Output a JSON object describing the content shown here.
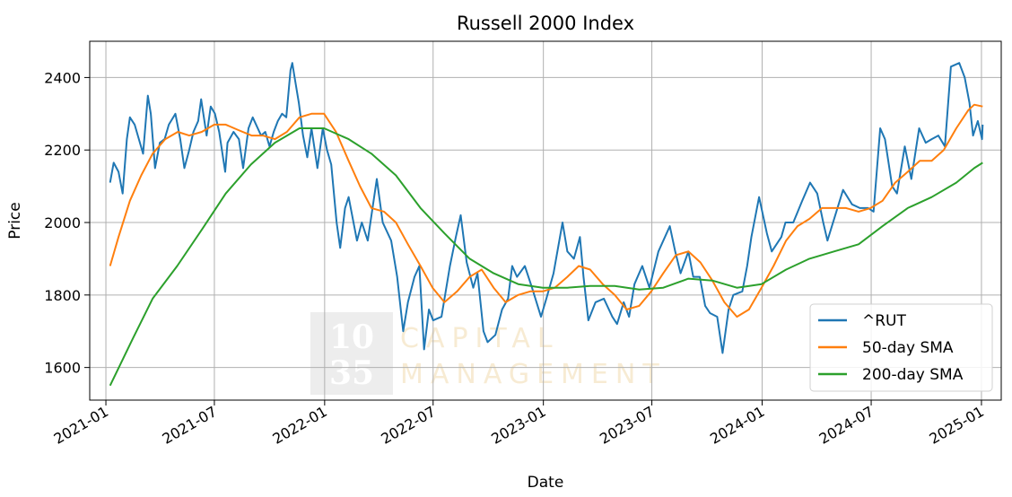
{
  "chart_data": {
    "type": "line",
    "title": "Russell 2000 Index",
    "xlabel": "Date",
    "ylabel": "Price",
    "xlim": [
      "2020-12-05",
      "2025-02-03"
    ],
    "ylim": [
      1510,
      2500
    ],
    "xticks": [
      "2021-01",
      "2021-07",
      "2022-01",
      "2022-07",
      "2023-01",
      "2023-07",
      "2024-01",
      "2024-07",
      "2025-01"
    ],
    "yticks": [
      1600,
      1800,
      2000,
      2200,
      2400
    ],
    "grid": true,
    "legend": "lower-right",
    "watermark": {
      "numerals": [
        "10",
        "35"
      ],
      "words": [
        "CAPITAL",
        "MANAGEMENT"
      ]
    },
    "series": [
      {
        "name": "^RUT",
        "color": "#1f77b4",
        "points": [
          [
            "2021-01-08",
            2110
          ],
          [
            "2021-01-14",
            2165
          ],
          [
            "2021-01-22",
            2140
          ],
          [
            "2021-01-29",
            2080
          ],
          [
            "2021-02-05",
            2230
          ],
          [
            "2021-02-10",
            2290
          ],
          [
            "2021-02-18",
            2270
          ],
          [
            "2021-02-25",
            2230
          ],
          [
            "2021-03-04",
            2190
          ],
          [
            "2021-03-12",
            2350
          ],
          [
            "2021-03-17",
            2300
          ],
          [
            "2021-03-24",
            2150
          ],
          [
            "2021-04-01",
            2220
          ],
          [
            "2021-04-09",
            2230
          ],
          [
            "2021-04-16",
            2270
          ],
          [
            "2021-04-27",
            2300
          ],
          [
            "2021-05-05",
            2230
          ],
          [
            "2021-05-12",
            2150
          ],
          [
            "2021-05-20",
            2200
          ],
          [
            "2021-05-27",
            2250
          ],
          [
            "2021-06-04",
            2280
          ],
          [
            "2021-06-09",
            2340
          ],
          [
            "2021-06-18",
            2240
          ],
          [
            "2021-06-25",
            2320
          ],
          [
            "2021-07-02",
            2300
          ],
          [
            "2021-07-09",
            2250
          ],
          [
            "2021-07-19",
            2140
          ],
          [
            "2021-07-23",
            2220
          ],
          [
            "2021-08-02",
            2250
          ],
          [
            "2021-08-11",
            2230
          ],
          [
            "2021-08-18",
            2150
          ],
          [
            "2021-08-27",
            2260
          ],
          [
            "2021-09-03",
            2290
          ],
          [
            "2021-09-17",
            2240
          ],
          [
            "2021-09-24",
            2250
          ],
          [
            "2021-10-01",
            2210
          ],
          [
            "2021-10-08",
            2250
          ],
          [
            "2021-10-15",
            2280
          ],
          [
            "2021-10-22",
            2300
          ],
          [
            "2021-10-29",
            2290
          ],
          [
            "2021-11-05",
            2420
          ],
          [
            "2021-11-08",
            2440
          ],
          [
            "2021-11-12",
            2400
          ],
          [
            "2021-11-19",
            2330
          ],
          [
            "2021-11-26",
            2240
          ],
          [
            "2021-12-03",
            2180
          ],
          [
            "2021-12-10",
            2260
          ],
          [
            "2021-12-20",
            2150
          ],
          [
            "2021-12-29",
            2260
          ],
          [
            "2022-01-05",
            2200
          ],
          [
            "2022-01-12",
            2160
          ],
          [
            "2022-01-21",
            2000
          ],
          [
            "2022-01-27",
            1930
          ],
          [
            "2022-02-04",
            2040
          ],
          [
            "2022-02-10",
            2070
          ],
          [
            "2022-02-24",
            1950
          ],
          [
            "2022-03-04",
            2000
          ],
          [
            "2022-03-14",
            1950
          ],
          [
            "2022-03-29",
            2120
          ],
          [
            "2022-04-08",
            2000
          ],
          [
            "2022-04-22",
            1950
          ],
          [
            "2022-05-02",
            1850
          ],
          [
            "2022-05-12",
            1700
          ],
          [
            "2022-05-20",
            1780
          ],
          [
            "2022-05-31",
            1850
          ],
          [
            "2022-06-08",
            1880
          ],
          [
            "2022-06-16",
            1650
          ],
          [
            "2022-06-24",
            1760
          ],
          [
            "2022-07-01",
            1730
          ],
          [
            "2022-07-15",
            1740
          ],
          [
            "2022-07-29",
            1880
          ],
          [
            "2022-08-08",
            1960
          ],
          [
            "2022-08-16",
            2020
          ],
          [
            "2022-08-26",
            1890
          ],
          [
            "2022-09-06",
            1820
          ],
          [
            "2022-09-13",
            1860
          ],
          [
            "2022-09-23",
            1700
          ],
          [
            "2022-09-30",
            1670
          ],
          [
            "2022-10-13",
            1690
          ],
          [
            "2022-10-24",
            1760
          ],
          [
            "2022-11-03",
            1790
          ],
          [
            "2022-11-10",
            1880
          ],
          [
            "2022-11-18",
            1850
          ],
          [
            "2022-12-01",
            1880
          ],
          [
            "2022-12-13",
            1820
          ],
          [
            "2022-12-28",
            1740
          ],
          [
            "2023-01-06",
            1790
          ],
          [
            "2023-01-18",
            1860
          ],
          [
            "2023-02-02",
            2000
          ],
          [
            "2023-02-10",
            1920
          ],
          [
            "2023-02-21",
            1900
          ],
          [
            "2023-03-03",
            1960
          ],
          [
            "2023-03-09",
            1850
          ],
          [
            "2023-03-17",
            1730
          ],
          [
            "2023-03-29",
            1780
          ],
          [
            "2023-04-12",
            1790
          ],
          [
            "2023-04-26",
            1740
          ],
          [
            "2023-05-04",
            1720
          ],
          [
            "2023-05-15",
            1780
          ],
          [
            "2023-05-24",
            1740
          ],
          [
            "2023-06-02",
            1830
          ],
          [
            "2023-06-15",
            1880
          ],
          [
            "2023-06-27",
            1820
          ],
          [
            "2023-07-12",
            1920
          ],
          [
            "2023-07-31",
            1990
          ],
          [
            "2023-08-09",
            1920
          ],
          [
            "2023-08-18",
            1860
          ],
          [
            "2023-08-31",
            1920
          ],
          [
            "2023-09-08",
            1850
          ],
          [
            "2023-09-19",
            1850
          ],
          [
            "2023-09-28",
            1770
          ],
          [
            "2023-10-06",
            1750
          ],
          [
            "2023-10-18",
            1740
          ],
          [
            "2023-10-27",
            1640
          ],
          [
            "2023-11-06",
            1760
          ],
          [
            "2023-11-14",
            1800
          ],
          [
            "2023-11-29",
            1810
          ],
          [
            "2023-12-07",
            1880
          ],
          [
            "2023-12-14",
            1960
          ],
          [
            "2023-12-27",
            2070
          ],
          [
            "2024-01-09",
            1970
          ],
          [
            "2024-01-17",
            1920
          ],
          [
            "2024-02-02",
            1960
          ],
          [
            "2024-02-09",
            2000
          ],
          [
            "2024-02-22",
            2000
          ],
          [
            "2024-03-08",
            2060
          ],
          [
            "2024-03-21",
            2110
          ],
          [
            "2024-04-02",
            2080
          ],
          [
            "2024-04-12",
            2000
          ],
          [
            "2024-04-19",
            1950
          ],
          [
            "2024-05-02",
            2020
          ],
          [
            "2024-05-15",
            2090
          ],
          [
            "2024-05-30",
            2050
          ],
          [
            "2024-06-12",
            2040
          ],
          [
            "2024-06-26",
            2040
          ],
          [
            "2024-07-05",
            2030
          ],
          [
            "2024-07-16",
            2260
          ],
          [
            "2024-07-24",
            2230
          ],
          [
            "2024-08-05",
            2100
          ],
          [
            "2024-08-13",
            2080
          ],
          [
            "2024-08-26",
            2210
          ],
          [
            "2024-09-06",
            2120
          ],
          [
            "2024-09-19",
            2260
          ],
          [
            "2024-09-30",
            2220
          ],
          [
            "2024-10-10",
            2230
          ],
          [
            "2024-10-21",
            2240
          ],
          [
            "2024-11-01",
            2210
          ],
          [
            "2024-11-11",
            2430
          ],
          [
            "2024-11-25",
            2440
          ],
          [
            "2024-12-04",
            2400
          ],
          [
            "2024-12-12",
            2330
          ],
          [
            "2024-12-18",
            2240
          ],
          [
            "2024-12-26",
            2280
          ],
          [
            "2025-01-02",
            2230
          ],
          [
            "2025-01-03",
            2270
          ]
        ]
      },
      {
        "name": "50-day SMA",
        "color": "#ff7f0e",
        "points": [
          [
            "2021-01-08",
            1880
          ],
          [
            "2021-01-22",
            1960
          ],
          [
            "2021-02-10",
            2060
          ],
          [
            "2021-03-01",
            2130
          ],
          [
            "2021-03-20",
            2190
          ],
          [
            "2021-04-10",
            2230
          ],
          [
            "2021-05-01",
            2250
          ],
          [
            "2021-05-20",
            2240
          ],
          [
            "2021-06-10",
            2250
          ],
          [
            "2021-07-01",
            2270
          ],
          [
            "2021-07-20",
            2270
          ],
          [
            "2021-08-10",
            2255
          ],
          [
            "2021-09-01",
            2240
          ],
          [
            "2021-09-20",
            2240
          ],
          [
            "2021-10-10",
            2230
          ],
          [
            "2021-10-30",
            2250
          ],
          [
            "2021-11-20",
            2290
          ],
          [
            "2021-12-10",
            2300
          ],
          [
            "2021-12-31",
            2300
          ],
          [
            "2022-01-20",
            2250
          ],
          [
            "2022-02-10",
            2170
          ],
          [
            "2022-03-01",
            2100
          ],
          [
            "2022-03-20",
            2040
          ],
          [
            "2022-04-10",
            2030
          ],
          [
            "2022-04-30",
            2000
          ],
          [
            "2022-05-20",
            1940
          ],
          [
            "2022-06-10",
            1880
          ],
          [
            "2022-06-30",
            1820
          ],
          [
            "2022-07-20",
            1780
          ],
          [
            "2022-08-10",
            1810
          ],
          [
            "2022-08-31",
            1850
          ],
          [
            "2022-09-20",
            1870
          ],
          [
            "2022-10-10",
            1820
          ],
          [
            "2022-10-30",
            1780
          ],
          [
            "2022-11-20",
            1800
          ],
          [
            "2022-12-10",
            1810
          ],
          [
            "2022-12-31",
            1810
          ],
          [
            "2023-01-20",
            1820
          ],
          [
            "2023-02-10",
            1850
          ],
          [
            "2023-03-01",
            1880
          ],
          [
            "2023-03-20",
            1870
          ],
          [
            "2023-04-10",
            1830
          ],
          [
            "2023-04-30",
            1800
          ],
          [
            "2023-05-20",
            1760
          ],
          [
            "2023-06-10",
            1770
          ],
          [
            "2023-06-30",
            1810
          ],
          [
            "2023-07-20",
            1860
          ],
          [
            "2023-08-10",
            1910
          ],
          [
            "2023-08-31",
            1920
          ],
          [
            "2023-09-20",
            1890
          ],
          [
            "2023-10-10",
            1840
          ],
          [
            "2023-10-30",
            1780
          ],
          [
            "2023-11-20",
            1740
          ],
          [
            "2023-12-10",
            1760
          ],
          [
            "2023-12-31",
            1820
          ],
          [
            "2024-01-20",
            1880
          ],
          [
            "2024-02-10",
            1950
          ],
          [
            "2024-02-29",
            1990
          ],
          [
            "2024-03-20",
            2010
          ],
          [
            "2024-04-10",
            2040
          ],
          [
            "2024-04-30",
            2040
          ],
          [
            "2024-05-20",
            2040
          ],
          [
            "2024-06-10",
            2030
          ],
          [
            "2024-06-30",
            2040
          ],
          [
            "2024-07-20",
            2060
          ],
          [
            "2024-08-10",
            2110
          ],
          [
            "2024-08-31",
            2140
          ],
          [
            "2024-09-20",
            2170
          ],
          [
            "2024-10-10",
            2170
          ],
          [
            "2024-10-30",
            2200
          ],
          [
            "2024-11-20",
            2260
          ],
          [
            "2024-12-10",
            2310
          ],
          [
            "2024-12-20",
            2325
          ],
          [
            "2025-01-03",
            2320
          ]
        ]
      },
      {
        "name": "200-day SMA",
        "color": "#2ca02c",
        "points": [
          [
            "2021-01-08",
            1550
          ],
          [
            "2021-02-15",
            1680
          ],
          [
            "2021-03-20",
            1790
          ],
          [
            "2021-04-30",
            1880
          ],
          [
            "2021-06-10",
            1980
          ],
          [
            "2021-07-20",
            2080
          ],
          [
            "2021-08-31",
            2160
          ],
          [
            "2021-10-10",
            2220
          ],
          [
            "2021-11-20",
            2260
          ],
          [
            "2021-12-31",
            2260
          ],
          [
            "2022-02-10",
            2230
          ],
          [
            "2022-03-20",
            2190
          ],
          [
            "2022-04-30",
            2130
          ],
          [
            "2022-06-10",
            2040
          ],
          [
            "2022-07-20",
            1970
          ],
          [
            "2022-08-31",
            1900
          ],
          [
            "2022-10-10",
            1860
          ],
          [
            "2022-11-20",
            1830
          ],
          [
            "2022-12-31",
            1820
          ],
          [
            "2023-02-10",
            1820
          ],
          [
            "2023-03-20",
            1825
          ],
          [
            "2023-04-30",
            1825
          ],
          [
            "2023-06-10",
            1815
          ],
          [
            "2023-07-20",
            1820
          ],
          [
            "2023-08-31",
            1845
          ],
          [
            "2023-10-10",
            1840
          ],
          [
            "2023-11-20",
            1820
          ],
          [
            "2023-12-31",
            1830
          ],
          [
            "2024-02-10",
            1870
          ],
          [
            "2024-03-20",
            1900
          ],
          [
            "2024-04-30",
            1920
          ],
          [
            "2024-06-10",
            1940
          ],
          [
            "2024-07-20",
            1990
          ],
          [
            "2024-08-31",
            2040
          ],
          [
            "2024-10-10",
            2070
          ],
          [
            "2024-11-20",
            2110
          ],
          [
            "2024-12-20",
            2150
          ],
          [
            "2025-01-03",
            2165
          ]
        ]
      }
    ]
  }
}
